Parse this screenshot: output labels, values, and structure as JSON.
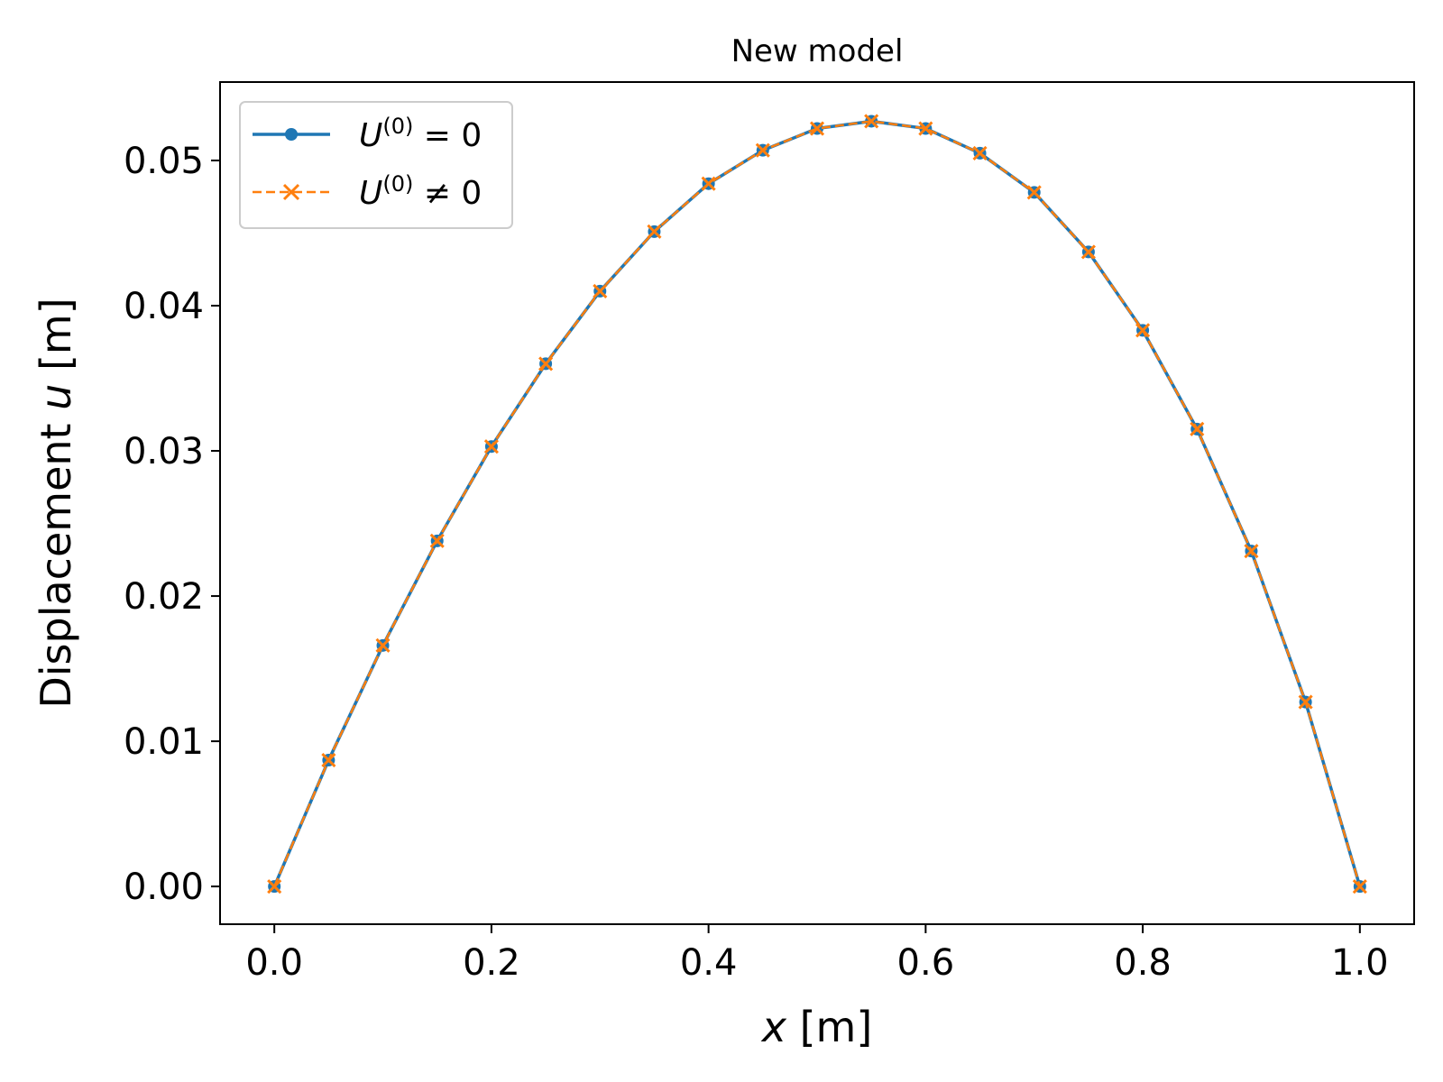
{
  "chart_data": {
    "type": "line",
    "title": "New model",
    "xlabel": "x [m]",
    "ylabel": "Displacement u [m]",
    "xlim": [
      -0.05,
      1.05
    ],
    "ylim": [
      -0.0026,
      0.0554
    ],
    "xticks": [
      0.0,
      0.2,
      0.4,
      0.6,
      0.8,
      1.0
    ],
    "xtick_labels": [
      "0.0",
      "0.2",
      "0.4",
      "0.6",
      "0.8",
      "1.0"
    ],
    "yticks": [
      0.0,
      0.01,
      0.02,
      0.03,
      0.04,
      0.05
    ],
    "ytick_labels": [
      "0.00",
      "0.01",
      "0.02",
      "0.03",
      "0.04",
      "0.05"
    ],
    "grid": false,
    "legend_position": "top-left",
    "x": [
      0.0,
      0.05,
      0.1,
      0.15,
      0.2,
      0.25,
      0.3,
      0.35,
      0.4,
      0.45,
      0.5,
      0.55,
      0.6,
      0.65,
      0.7,
      0.75,
      0.8,
      0.85,
      0.9,
      0.95,
      1.0
    ],
    "series": [
      {
        "name": "U(0) = 0",
        "color": "#1f77b4",
        "line_style": "solid",
        "marker": "circle",
        "values": [
          0.0,
          0.0087,
          0.0166,
          0.0238,
          0.0303,
          0.036,
          0.041,
          0.0451,
          0.0484,
          0.0507,
          0.0522,
          0.0527,
          0.0522,
          0.0505,
          0.0478,
          0.0437,
          0.0383,
          0.0315,
          0.0231,
          0.0127,
          0.0
        ]
      },
      {
        "name": "U(0) ≠ 0",
        "color": "#ff7f0e",
        "line_style": "dashed",
        "marker": "x",
        "values": [
          0.0,
          0.0087,
          0.0166,
          0.0238,
          0.0303,
          0.036,
          0.041,
          0.0451,
          0.0484,
          0.0507,
          0.0522,
          0.0527,
          0.0522,
          0.0505,
          0.0478,
          0.0437,
          0.0383,
          0.0315,
          0.0231,
          0.0127,
          0.0
        ]
      }
    ]
  }
}
